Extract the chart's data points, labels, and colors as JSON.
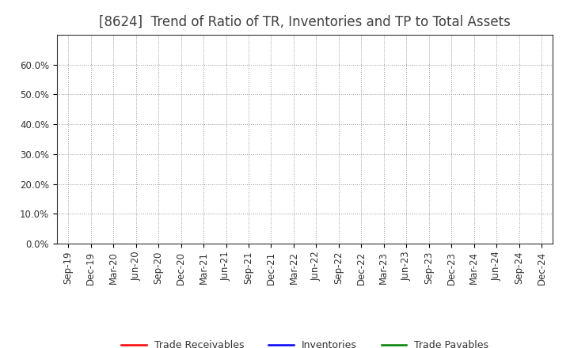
{
  "title": "[8624]  Trend of Ratio of TR, Inventories and TP to Total Assets",
  "x_labels": [
    "Sep-19",
    "Dec-19",
    "Mar-20",
    "Jun-20",
    "Sep-20",
    "Dec-20",
    "Mar-21",
    "Jun-21",
    "Sep-21",
    "Dec-21",
    "Mar-22",
    "Jun-22",
    "Sep-22",
    "Dec-22",
    "Mar-23",
    "Jun-23",
    "Sep-23",
    "Dec-23",
    "Mar-24",
    "Jun-24",
    "Sep-24",
    "Dec-24"
  ],
  "ylim": [
    0.0,
    0.7
  ],
  "yticks": [
    0.0,
    0.1,
    0.2,
    0.3,
    0.4,
    0.5,
    0.6
  ],
  "ytick_labels": [
    "0.0%",
    "10.0%",
    "20.0%",
    "30.0%",
    "40.0%",
    "50.0%",
    "60.0%"
  ],
  "series": [
    {
      "label": "Trade Receivables",
      "color": "#ff0000"
    },
    {
      "label": "Inventories",
      "color": "#0000ff"
    },
    {
      "label": "Trade Payables",
      "color": "#008000"
    }
  ],
  "background_color": "#ffffff",
  "plot_bg_color": "#ffffff",
  "grid_color": "#999999",
  "title_fontsize": 12,
  "tick_fontsize": 8.5,
  "legend_fontsize": 9,
  "title_color": "#404040"
}
